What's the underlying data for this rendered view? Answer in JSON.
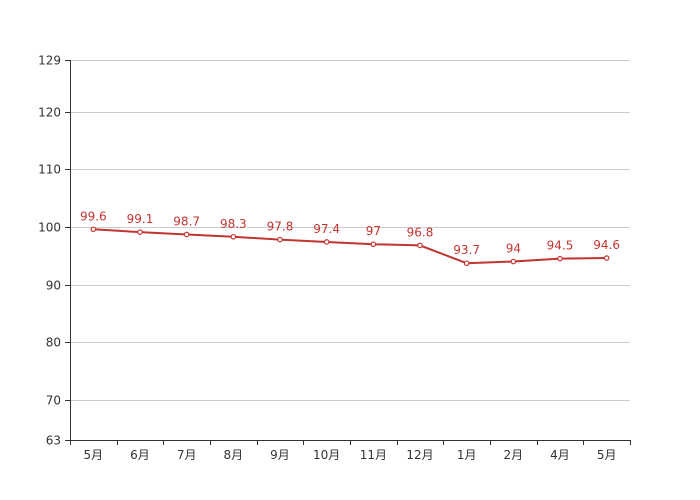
{
  "chart_data": {
    "type": "line",
    "title": "",
    "xlabel": "",
    "ylabel": "",
    "categories": [
      "5月",
      "6月",
      "7月",
      "8月",
      "9月",
      "10月",
      "11月",
      "12月",
      "1月",
      "2月",
      "4月",
      "5月"
    ],
    "series": [
      {
        "values": [
          99.6,
          99.1,
          98.7,
          98.3,
          97.8,
          97.4,
          97,
          96.8,
          93.7,
          94,
          94.5,
          94.6
        ],
        "color": "#c23531"
      }
    ],
    "ylim": [
      63,
      129
    ],
    "yticks": [
      63,
      70,
      80,
      90,
      100,
      110,
      120,
      129
    ],
    "grid": true,
    "legend": "none"
  }
}
